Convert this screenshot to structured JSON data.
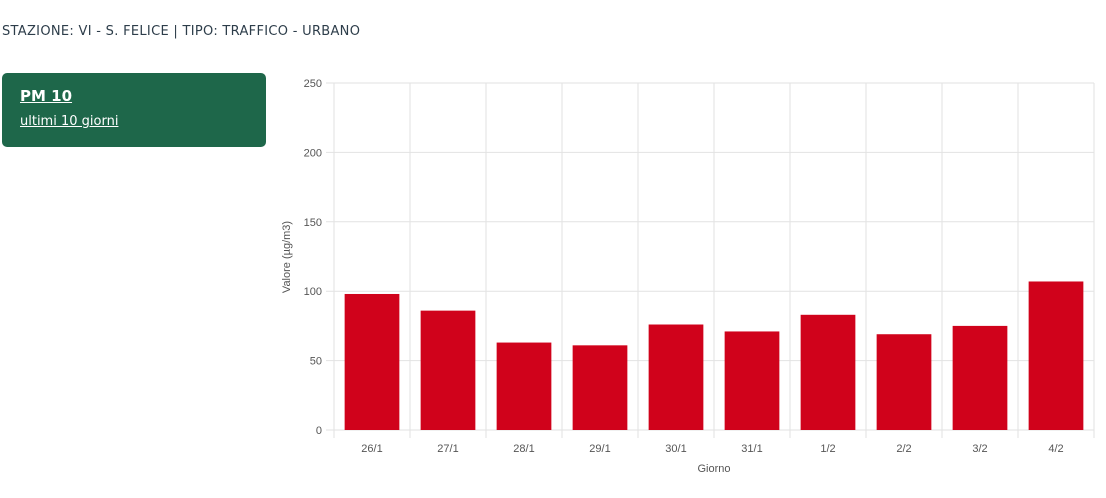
{
  "station": {
    "label": "STAZIONE: VI - S. FELICE | TIPO: TRAFFICO - URBANO"
  },
  "pollutant": {
    "name": "PM 10",
    "period": "ultimi 10 giorni"
  },
  "colors": {
    "bar": "#d0021b",
    "card": "#1e674a",
    "grid": "#e2e2e2"
  },
  "chart_data": {
    "type": "bar",
    "categories": [
      "26/1",
      "27/1",
      "28/1",
      "29/1",
      "30/1",
      "31/1",
      "1/2",
      "2/2",
      "3/2",
      "4/2"
    ],
    "values": [
      98,
      86,
      63,
      61,
      76,
      71,
      83,
      69,
      75,
      107
    ],
    "xlabel": "Giorno",
    "ylabel": "Valore (µg/m3)",
    "ylim": [
      0,
      250
    ],
    "yticks": [
      0,
      50,
      100,
      150,
      200,
      250
    ],
    "grid": true,
    "legend": false
  }
}
